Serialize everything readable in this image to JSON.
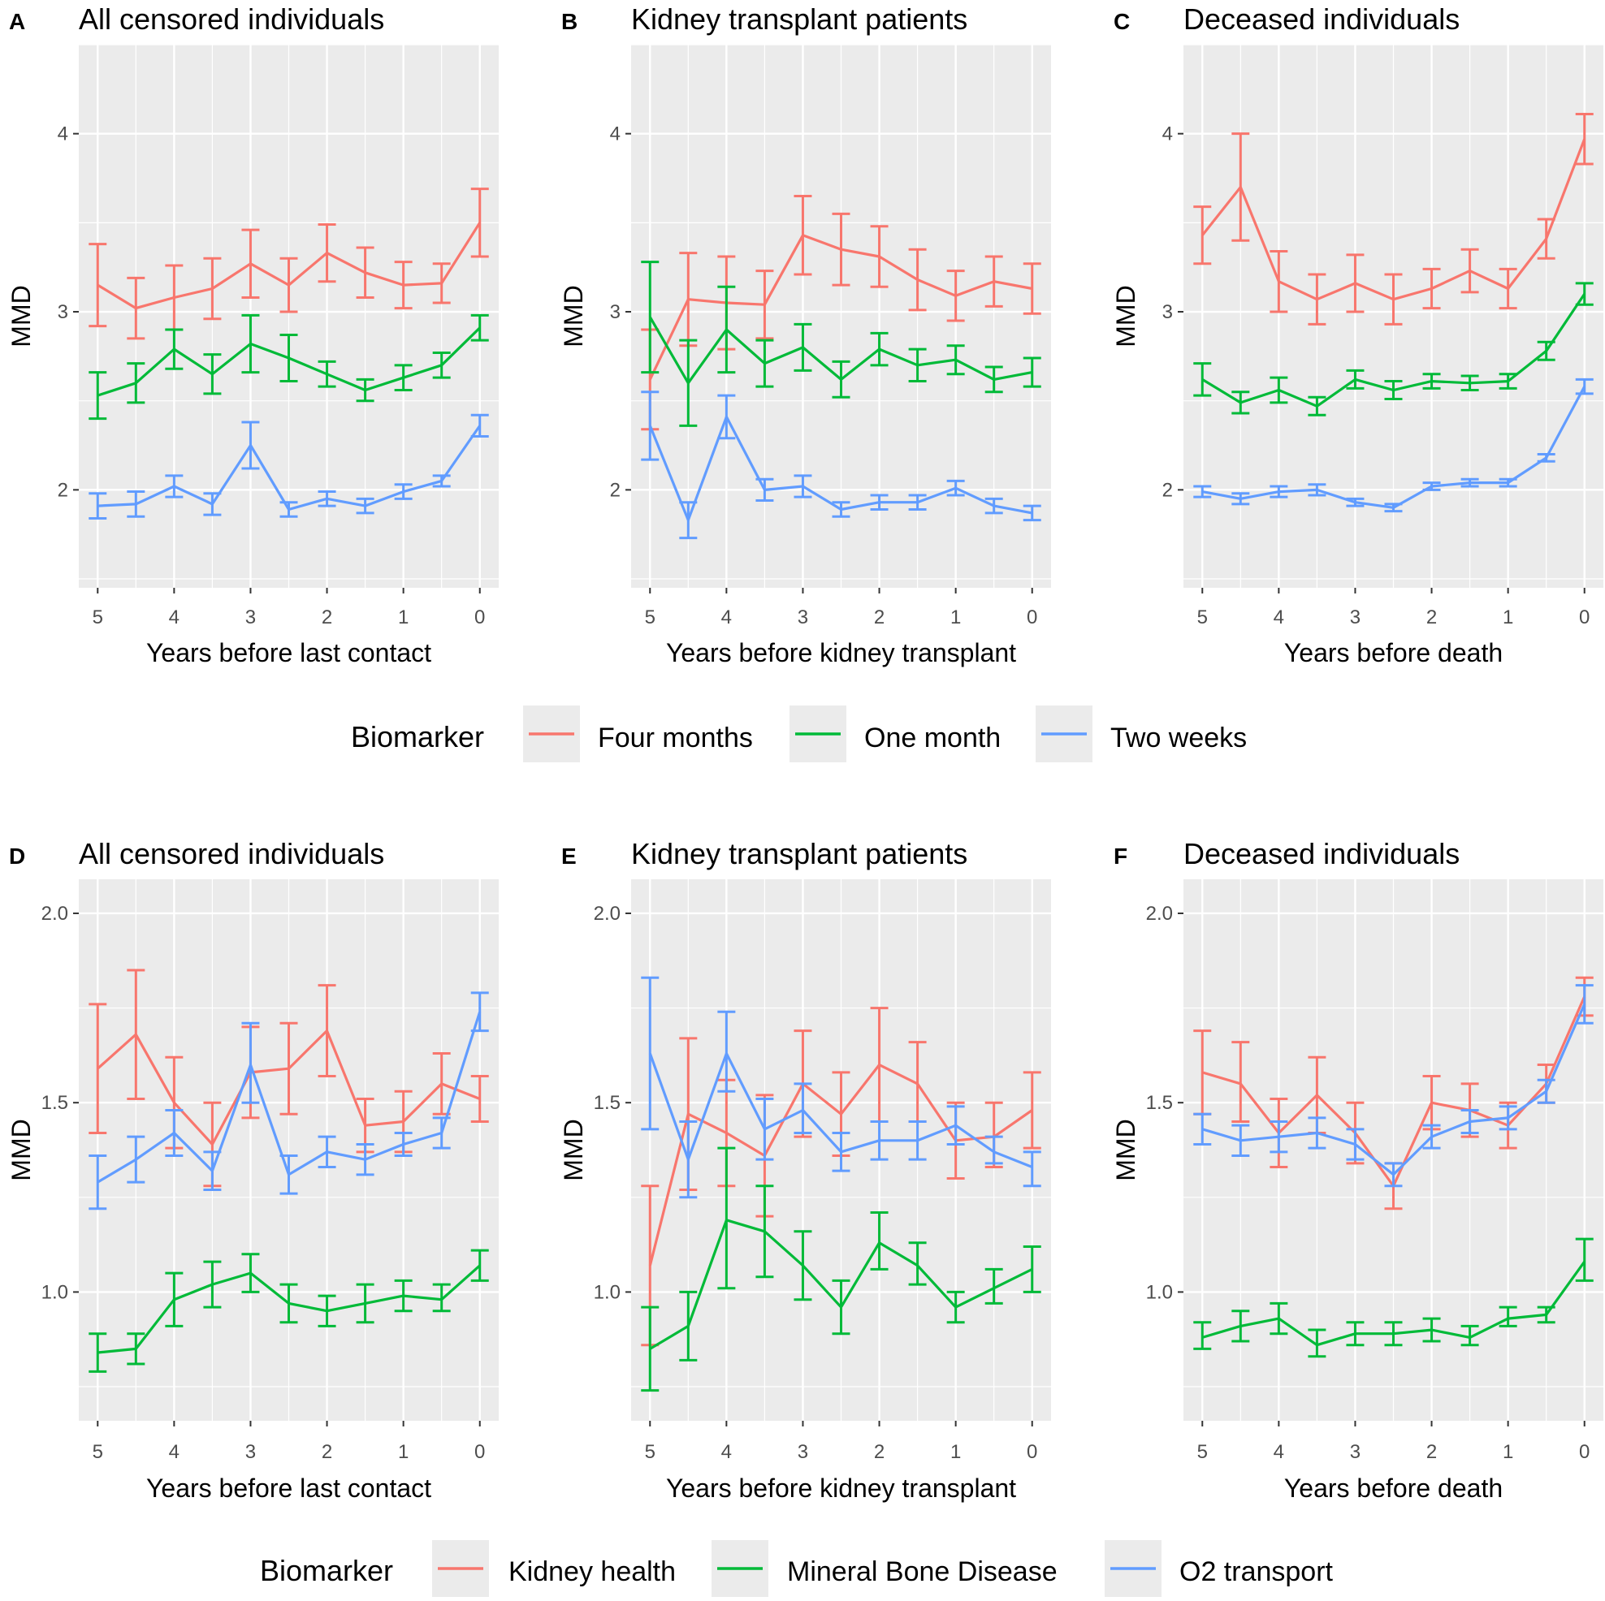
{
  "chart_data": [
    {
      "panel": "A",
      "type": "line",
      "title": "All censored individuals",
      "xlabel": "Years before last contact",
      "ylabel": "MMD",
      "x": [
        5,
        4.5,
        4,
        3.5,
        3,
        2.5,
        2,
        1.5,
        1,
        0.5,
        0
      ],
      "xticks": [
        "5",
        "4",
        "3",
        "2",
        "1",
        "0"
      ],
      "yticks": [
        "2",
        "3",
        "4"
      ],
      "ylim": [
        1.45,
        4.5
      ],
      "legend_group": 0,
      "series": [
        {
          "name": "Four months",
          "values": [
            3.15,
            3.02,
            3.08,
            3.13,
            3.27,
            3.15,
            3.33,
            3.22,
            3.15,
            3.16,
            3.5
          ],
          "lower": [
            2.92,
            2.85,
            2.9,
            2.96,
            3.08,
            3.0,
            3.17,
            3.08,
            3.02,
            3.05,
            3.31
          ],
          "upper": [
            3.38,
            3.19,
            3.26,
            3.3,
            3.46,
            3.3,
            3.49,
            3.36,
            3.28,
            3.27,
            3.69
          ]
        },
        {
          "name": "One month",
          "values": [
            2.53,
            2.6,
            2.79,
            2.65,
            2.82,
            2.74,
            2.65,
            2.56,
            2.63,
            2.7,
            2.91
          ],
          "lower": [
            2.4,
            2.49,
            2.68,
            2.54,
            2.66,
            2.61,
            2.58,
            2.5,
            2.56,
            2.63,
            2.84
          ],
          "upper": [
            2.66,
            2.71,
            2.9,
            2.76,
            2.98,
            2.87,
            2.72,
            2.62,
            2.7,
            2.77,
            2.98
          ]
        },
        {
          "name": "Two weeks",
          "values": [
            1.91,
            1.92,
            2.02,
            1.92,
            2.25,
            1.89,
            1.95,
            1.91,
            1.99,
            2.05,
            2.36
          ],
          "lower": [
            1.84,
            1.85,
            1.96,
            1.86,
            2.12,
            1.85,
            1.91,
            1.87,
            1.95,
            2.02,
            2.3
          ],
          "upper": [
            1.98,
            1.99,
            2.08,
            1.98,
            2.38,
            1.93,
            1.99,
            1.95,
            2.03,
            2.08,
            2.42
          ]
        }
      ]
    },
    {
      "panel": "B",
      "type": "line",
      "title": "Kidney transplant patients",
      "xlabel": "Years before kidney transplant",
      "ylabel": "MMD",
      "x": [
        5,
        4.5,
        4,
        3.5,
        3,
        2.5,
        2,
        1.5,
        1,
        0.5,
        0
      ],
      "xticks": [
        "5",
        "4",
        "3",
        "2",
        "1",
        "0"
      ],
      "yticks": [
        "2",
        "3",
        "4"
      ],
      "ylim": [
        1.45,
        4.5
      ],
      "legend_group": 0,
      "series": [
        {
          "name": "Four months",
          "values": [
            2.62,
            3.07,
            3.05,
            3.04,
            3.43,
            3.35,
            3.31,
            3.18,
            3.09,
            3.17,
            3.13
          ],
          "lower": [
            2.34,
            2.81,
            2.79,
            2.85,
            3.21,
            3.15,
            3.14,
            3.01,
            2.95,
            3.03,
            2.99
          ],
          "upper": [
            2.9,
            3.33,
            3.31,
            3.23,
            3.65,
            3.55,
            3.48,
            3.35,
            3.23,
            3.31,
            3.27
          ]
        },
        {
          "name": "One month",
          "values": [
            2.97,
            2.6,
            2.9,
            2.71,
            2.8,
            2.62,
            2.79,
            2.7,
            2.73,
            2.62,
            2.66
          ],
          "lower": [
            2.66,
            2.36,
            2.66,
            2.58,
            2.67,
            2.52,
            2.7,
            2.61,
            2.65,
            2.55,
            2.58
          ],
          "upper": [
            3.28,
            2.84,
            3.14,
            2.84,
            2.93,
            2.72,
            2.88,
            2.79,
            2.81,
            2.69,
            2.74
          ]
        },
        {
          "name": "Two weeks",
          "values": [
            2.36,
            1.83,
            2.41,
            2.0,
            2.02,
            1.89,
            1.93,
            1.93,
            2.01,
            1.91,
            1.87
          ],
          "lower": [
            2.17,
            1.73,
            2.29,
            1.94,
            1.96,
            1.85,
            1.89,
            1.89,
            1.97,
            1.87,
            1.83
          ],
          "upper": [
            2.55,
            1.93,
            2.53,
            2.06,
            2.08,
            1.93,
            1.97,
            1.97,
            2.05,
            1.95,
            1.91
          ]
        }
      ]
    },
    {
      "panel": "C",
      "type": "line",
      "title": "Deceased individuals",
      "xlabel": "Years before death",
      "ylabel": "MMD",
      "x": [
        5,
        4.5,
        4,
        3.5,
        3,
        2.5,
        2,
        1.5,
        1,
        0.5,
        0
      ],
      "xticks": [
        "5",
        "4",
        "3",
        "2",
        "1",
        "0"
      ],
      "yticks": [
        "2",
        "3",
        "4"
      ],
      "ylim": [
        1.45,
        4.5
      ],
      "legend_group": 0,
      "series": [
        {
          "name": "Four months",
          "values": [
            3.43,
            3.7,
            3.17,
            3.07,
            3.16,
            3.07,
            3.13,
            3.23,
            3.13,
            3.41,
            3.97
          ],
          "lower": [
            3.27,
            3.4,
            3.0,
            2.93,
            3.0,
            2.93,
            3.02,
            3.11,
            3.02,
            3.3,
            3.83
          ],
          "upper": [
            3.59,
            4.0,
            3.34,
            3.21,
            3.32,
            3.21,
            3.24,
            3.35,
            3.24,
            3.52,
            4.11
          ]
        },
        {
          "name": "One month",
          "values": [
            2.62,
            2.49,
            2.56,
            2.47,
            2.62,
            2.56,
            2.61,
            2.6,
            2.61,
            2.78,
            3.1
          ],
          "lower": [
            2.53,
            2.43,
            2.49,
            2.42,
            2.57,
            2.51,
            2.57,
            2.56,
            2.57,
            2.73,
            3.04
          ],
          "upper": [
            2.71,
            2.55,
            2.63,
            2.52,
            2.67,
            2.61,
            2.65,
            2.64,
            2.65,
            2.83,
            3.16
          ]
        },
        {
          "name": "Two weeks",
          "values": [
            1.99,
            1.95,
            1.99,
            2.0,
            1.93,
            1.9,
            2.02,
            2.04,
            2.04,
            2.18,
            2.58
          ],
          "lower": [
            1.96,
            1.92,
            1.96,
            1.97,
            1.91,
            1.88,
            2.0,
            2.02,
            2.02,
            2.16,
            2.54
          ],
          "upper": [
            2.02,
            1.98,
            2.02,
            2.03,
            1.95,
            1.92,
            2.04,
            2.06,
            2.06,
            2.2,
            2.62
          ]
        }
      ]
    },
    {
      "panel": "D",
      "type": "line",
      "title": "All censored individuals",
      "xlabel": "Years before last contact",
      "ylabel": "MMD",
      "x": [
        5,
        4.5,
        4,
        3.5,
        3,
        2.5,
        2,
        1.5,
        1,
        0.5,
        0
      ],
      "xticks": [
        "5",
        "4",
        "3",
        "2",
        "1",
        "0"
      ],
      "yticks": [
        "1.0",
        "1.5",
        "2.0"
      ],
      "ylim": [
        0.66,
        2.09
      ],
      "legend_group": 1,
      "series": [
        {
          "name": "Kidney health",
          "values": [
            1.59,
            1.68,
            1.5,
            1.39,
            1.58,
            1.59,
            1.69,
            1.44,
            1.45,
            1.55,
            1.51
          ],
          "lower": [
            1.42,
            1.51,
            1.38,
            1.28,
            1.46,
            1.47,
            1.57,
            1.37,
            1.37,
            1.47,
            1.45
          ],
          "upper": [
            1.76,
            1.85,
            1.62,
            1.5,
            1.7,
            1.71,
            1.81,
            1.51,
            1.53,
            1.63,
            1.57
          ]
        },
        {
          "name": "Mineral Bone Disease",
          "values": [
            0.84,
            0.85,
            0.98,
            1.02,
            1.05,
            0.97,
            0.95,
            0.97,
            0.99,
            0.98,
            1.07
          ],
          "lower": [
            0.79,
            0.81,
            0.91,
            0.96,
            1.0,
            0.92,
            0.91,
            0.92,
            0.95,
            0.95,
            1.03
          ],
          "upper": [
            0.89,
            0.89,
            1.05,
            1.08,
            1.1,
            1.02,
            0.99,
            1.02,
            1.03,
            1.02,
            1.11
          ]
        },
        {
          "name": "O2 transport",
          "values": [
            1.29,
            1.35,
            1.42,
            1.32,
            1.6,
            1.31,
            1.37,
            1.35,
            1.39,
            1.42,
            1.74
          ],
          "lower": [
            1.22,
            1.29,
            1.36,
            1.27,
            1.5,
            1.26,
            1.33,
            1.31,
            1.36,
            1.38,
            1.69
          ],
          "upper": [
            1.36,
            1.41,
            1.48,
            1.37,
            1.71,
            1.36,
            1.41,
            1.39,
            1.42,
            1.46,
            1.79
          ]
        }
      ]
    },
    {
      "panel": "E",
      "type": "line",
      "title": "Kidney transplant patients",
      "xlabel": "Years before kidney transplant",
      "ylabel": "MMD",
      "x": [
        5,
        4.5,
        4,
        3.5,
        3,
        2.5,
        2,
        1.5,
        1,
        0.5,
        0
      ],
      "xticks": [
        "5",
        "4",
        "3",
        "2",
        "1",
        "0"
      ],
      "yticks": [
        "1.0",
        "1.5",
        "2.0"
      ],
      "ylim": [
        0.66,
        2.09
      ],
      "legend_group": 1,
      "series": [
        {
          "name": "Kidney health",
          "values": [
            1.07,
            1.47,
            1.42,
            1.36,
            1.55,
            1.47,
            1.6,
            1.55,
            1.4,
            1.41,
            1.48
          ],
          "lower": [
            0.86,
            1.27,
            1.28,
            1.2,
            1.41,
            1.36,
            1.45,
            1.45,
            1.3,
            1.33,
            1.38
          ],
          "upper": [
            1.28,
            1.67,
            1.56,
            1.52,
            1.69,
            1.58,
            1.75,
            1.66,
            1.5,
            1.5,
            1.58
          ]
        },
        {
          "name": "Mineral Bone Disease",
          "values": [
            0.85,
            0.91,
            1.19,
            1.16,
            1.07,
            0.96,
            1.13,
            1.07,
            0.96,
            1.01,
            1.06
          ],
          "lower": [
            0.74,
            0.82,
            1.01,
            1.04,
            0.98,
            0.89,
            1.06,
            1.02,
            0.92,
            0.97,
            1.0
          ],
          "upper": [
            0.96,
            1.0,
            1.38,
            1.28,
            1.16,
            1.03,
            1.21,
            1.13,
            1.0,
            1.06,
            1.12
          ]
        },
        {
          "name": "O2 transport",
          "values": [
            1.63,
            1.35,
            1.63,
            1.43,
            1.48,
            1.37,
            1.4,
            1.4,
            1.44,
            1.37,
            1.33
          ],
          "lower": [
            1.43,
            1.25,
            1.53,
            1.35,
            1.42,
            1.32,
            1.35,
            1.35,
            1.39,
            1.34,
            1.28
          ],
          "upper": [
            1.83,
            1.45,
            1.74,
            1.51,
            1.55,
            1.42,
            1.45,
            1.45,
            1.49,
            1.41,
            1.37
          ]
        }
      ]
    },
    {
      "panel": "F",
      "type": "line",
      "title": "Deceased individuals",
      "xlabel": "Years before death",
      "ylabel": "MMD",
      "x": [
        5,
        4.5,
        4,
        3.5,
        3,
        2.5,
        2,
        1.5,
        1,
        0.5,
        0
      ],
      "xticks": [
        "5",
        "4",
        "3",
        "2",
        "1",
        "0"
      ],
      "yticks": [
        "1.0",
        "1.5",
        "2.0"
      ],
      "ylim": [
        0.66,
        2.09
      ],
      "legend_group": 1,
      "series": [
        {
          "name": "Kidney health",
          "values": [
            1.58,
            1.55,
            1.42,
            1.52,
            1.42,
            1.28,
            1.5,
            1.48,
            1.44,
            1.55,
            1.78
          ],
          "lower": [
            1.47,
            1.45,
            1.33,
            1.42,
            1.34,
            1.22,
            1.43,
            1.41,
            1.38,
            1.5,
            1.73
          ],
          "upper": [
            1.69,
            1.66,
            1.51,
            1.62,
            1.5,
            1.34,
            1.57,
            1.55,
            1.5,
            1.6,
            1.83
          ]
        },
        {
          "name": "Mineral Bone Disease",
          "values": [
            0.88,
            0.91,
            0.93,
            0.86,
            0.89,
            0.89,
            0.9,
            0.88,
            0.93,
            0.94,
            1.08
          ],
          "lower": [
            0.85,
            0.87,
            0.89,
            0.83,
            0.86,
            0.86,
            0.87,
            0.86,
            0.91,
            0.92,
            1.03
          ],
          "upper": [
            0.92,
            0.95,
            0.97,
            0.9,
            0.92,
            0.92,
            0.93,
            0.91,
            0.96,
            0.96,
            1.14
          ]
        },
        {
          "name": "O2 transport",
          "values": [
            1.43,
            1.4,
            1.41,
            1.42,
            1.39,
            1.31,
            1.41,
            1.45,
            1.46,
            1.53,
            1.76
          ],
          "lower": [
            1.39,
            1.36,
            1.37,
            1.38,
            1.35,
            1.28,
            1.38,
            1.42,
            1.43,
            1.5,
            1.71
          ],
          "upper": [
            1.47,
            1.44,
            1.45,
            1.46,
            1.43,
            1.34,
            1.44,
            1.48,
            1.49,
            1.56,
            1.81
          ]
        }
      ]
    }
  ],
  "legends": [
    {
      "title": "Biomarker",
      "items": [
        {
          "label": "Four months",
          "color": "#f8766d"
        },
        {
          "label": "One month",
          "color": "#00ba38"
        },
        {
          "label": "Two weeks",
          "color": "#619cff"
        }
      ]
    },
    {
      "title": "Biomarker",
      "items": [
        {
          "label": "Kidney health",
          "color": "#f8766d"
        },
        {
          "label": "Mineral Bone Disease",
          "color": "#00ba38"
        },
        {
          "label": "O2 transport",
          "color": "#619cff"
        }
      ]
    }
  ],
  "style": {
    "panel_bg": "#ebebeb",
    "grid_color": "#ffffff",
    "tick_color": "#333333"
  }
}
